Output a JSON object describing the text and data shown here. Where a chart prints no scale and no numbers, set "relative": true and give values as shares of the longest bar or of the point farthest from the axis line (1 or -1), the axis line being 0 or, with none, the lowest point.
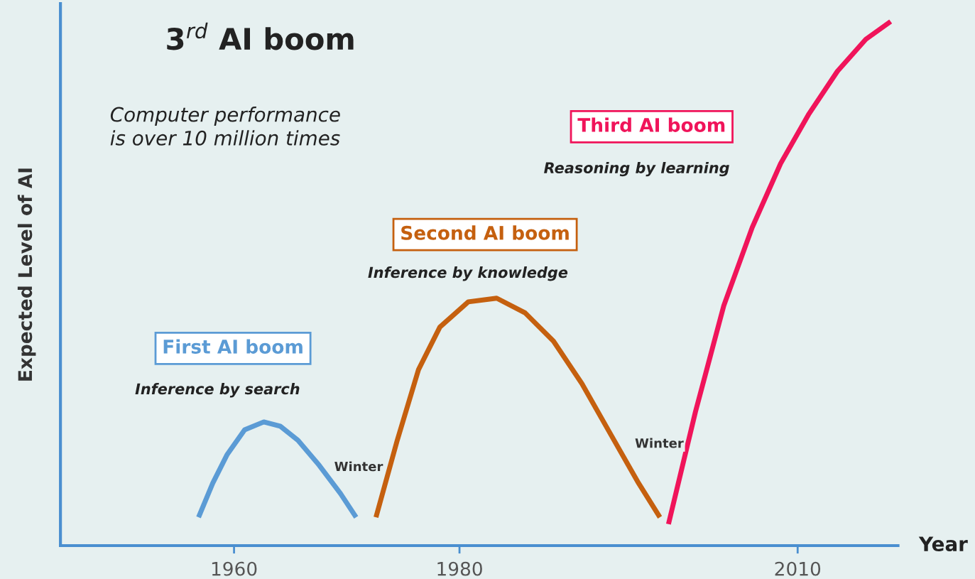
{
  "chart_data": {
    "type": "line",
    "title": "3$^{rd}$ AI boom",
    "xlabel": "Year",
    "ylabel": "Expected Level of AI",
    "relative": true,
    "xlim": [
      1944.6,
      2018.9
    ],
    "xticks": [
      1960,
      1980,
      2010
    ],
    "grid": false,
    "legend": false,
    "marker": "none",
    "line_style": "solid",
    "series": [
      {
        "name": "First AI boom",
        "color": "#5b9bd5",
        "x": [
          1956.85,
          1958.11,
          1959.37,
          1960.94,
          1962.64,
          1964.09,
          1965.67,
          1967.56,
          1969.45,
          1970.83
        ],
        "values": [
          0.054,
          0.119,
          0.173,
          0.221,
          0.236,
          0.228,
          0.201,
          0.153,
          0.099,
          0.054
        ]
      },
      {
        "name": "Second AI boom",
        "color": "#c5600f",
        "x": [
          1972.59,
          1974.48,
          1976.37,
          1978.26,
          1980.78,
          1983.3,
          1985.82,
          1988.34,
          1990.86,
          1993.37,
          1995.89,
          1997.78
        ],
        "values": [
          0.054,
          0.201,
          0.336,
          0.417,
          0.465,
          0.472,
          0.444,
          0.39,
          0.309,
          0.214,
          0.119,
          0.054
        ]
      },
      {
        "name": "Third AI boom",
        "color": "#f0145a",
        "x": [
          1998.54,
          2000.93,
          2003.45,
          2005.97,
          2008.49,
          2011.01,
          2013.53,
          2016.05,
          2018.25
        ],
        "values": [
          0.041,
          0.255,
          0.458,
          0.607,
          0.729,
          0.824,
          0.905,
          0.966,
          1.0
        ]
      }
    ],
    "annotations": [
      "Computer performance\nis over 10 million times",
      "Inference by search",
      "Inference by knowledge",
      "Reasoning by learning",
      "Winter",
      "Winter"
    ]
  }
}
